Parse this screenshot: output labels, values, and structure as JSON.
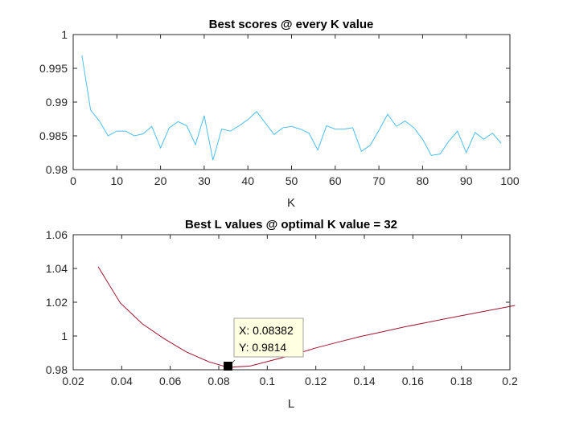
{
  "chart_data": [
    {
      "type": "line",
      "title": "Best scores @ every K value",
      "xlabel": "K",
      "ylabel": "",
      "xlim": [
        0,
        100
      ],
      "ylim": [
        0.98,
        1
      ],
      "xticks": [
        0,
        10,
        20,
        30,
        40,
        50,
        60,
        70,
        80,
        90,
        100
      ],
      "xtick_labels": [
        "0",
        "10",
        "20",
        "30",
        "40",
        "50",
        "60",
        "70",
        "80",
        "90",
        "100"
      ],
      "yticks": [
        0.98,
        0.985,
        0.99,
        0.995,
        1
      ],
      "ytick_labels": [
        "0.98",
        "0.985",
        "0.99",
        "0.995",
        "1"
      ],
      "grid": false,
      "color": "#4dbeee",
      "series": [
        {
          "x": [
            2,
            4,
            6,
            8,
            10,
            12,
            14,
            16,
            18,
            20,
            22,
            24,
            26,
            28,
            30,
            32,
            34,
            36,
            38,
            40,
            42,
            44,
            46,
            48,
            50,
            52,
            54,
            56,
            58,
            60,
            62,
            64,
            66,
            68,
            70,
            72,
            74,
            76,
            78,
            80,
            82,
            84,
            86,
            88,
            90,
            92,
            94,
            96,
            98
          ],
          "values": [
            0.9969,
            0.9888,
            0.9872,
            0.985,
            0.9857,
            0.9857,
            0.985,
            0.9853,
            0.9864,
            0.9832,
            0.9862,
            0.9871,
            0.9865,
            0.9837,
            0.988,
            0.9814,
            0.986,
            0.9857,
            0.9865,
            0.9874,
            0.9886,
            0.9869,
            0.9852,
            0.9862,
            0.9864,
            0.986,
            0.9854,
            0.9829,
            0.9865,
            0.986,
            0.986,
            0.9862,
            0.9827,
            0.9836,
            0.9858,
            0.9882,
            0.9864,
            0.9872,
            0.9862,
            0.9845,
            0.9821,
            0.9823,
            0.9842,
            0.9857,
            0.9825,
            0.9855,
            0.9845,
            0.9854,
            0.9839
          ]
        }
      ]
    },
    {
      "type": "line",
      "title": "Best L values @ optimal K value = 32",
      "xlabel": "L",
      "ylabel": "",
      "xlim": [
        0.02,
        0.2
      ],
      "ylim": [
        0.98,
        1.06
      ],
      "xticks": [
        0.02,
        0.04,
        0.06,
        0.08,
        0.1,
        0.12,
        0.14,
        0.16,
        0.18,
        0.2
      ],
      "xtick_labels": [
        "0.02",
        "0.04",
        "0.06",
        "0.08",
        "0.1",
        "0.12",
        "0.14",
        "0.16",
        "0.18",
        "0.2"
      ],
      "yticks": [
        0.98,
        1,
        1.02,
        1.04,
        1.06
      ],
      "ytick_labels": [
        "0.98",
        "1",
        "1.02",
        "1.04",
        "1.06"
      ],
      "grid": false,
      "color": "#a2142f",
      "series": [
        {
          "x": [
            0.0303,
            0.0394,
            0.0485,
            0.0576,
            0.0667,
            0.0758,
            0.0838,
            0.0929,
            0.102,
            0.1111,
            0.1202,
            0.1293,
            0.1384,
            0.1475,
            0.1566,
            0.1657,
            0.1748,
            0.1839,
            0.193,
            0.2021
          ],
          "values": [
            1.041,
            1.0196,
            1.0072,
            0.9983,
            0.9905,
            0.9848,
            0.9814,
            0.9822,
            0.9856,
            0.989,
            0.993,
            0.9964,
            0.9997,
            1.0025,
            1.0054,
            1.008,
            1.0106,
            1.0131,
            1.0156,
            1.0181
          ]
        }
      ],
      "datatip": {
        "x": 0.08382,
        "y": 0.9814,
        "x_label": "X: 0.08382",
        "y_label": "Y: 0.9814"
      }
    }
  ]
}
